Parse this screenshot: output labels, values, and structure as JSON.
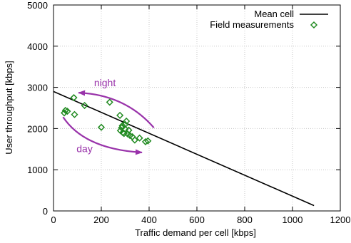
{
  "chart_data": {
    "type": "scatter",
    "title": "",
    "xlabel": "Traffic demand per cell [kbps]",
    "ylabel": "User throughput [kbps]",
    "xlim": [
      0,
      1200
    ],
    "ylim": [
      0,
      5000
    ],
    "xticks": [
      0,
      200,
      400,
      600,
      800,
      1000,
      1200
    ],
    "yticks": [
      0,
      1000,
      2000,
      3000,
      4000,
      5000
    ],
    "x_tick_labels": [
      "0",
      "200",
      "400",
      "600",
      "800",
      "1000",
      "1200"
    ],
    "y_tick_labels": [
      "0",
      "1000",
      "2000",
      "3000",
      "4000",
      "5000"
    ],
    "grid": true,
    "legend_position": "top-right",
    "series": [
      {
        "name": "Mean cell",
        "type": "line",
        "color": "#000000",
        "x": [
          0,
          1090
        ],
        "y": [
          2900,
          130
        ]
      },
      {
        "name": "Field measurements",
        "type": "scatter",
        "marker": "diamond",
        "color": "#228b22",
        "x": [
          45,
          50,
          58,
          85,
          88,
          130,
          200,
          235,
          278,
          280,
          285,
          288,
          290,
          295,
          300,
          300,
          305,
          310,
          315,
          320,
          330,
          340,
          360,
          385,
          395
        ],
        "y": [
          2380,
          2440,
          2420,
          2750,
          2340,
          2560,
          2030,
          2640,
          2320,
          1950,
          2020,
          2070,
          1900,
          1880,
          1990,
          2100,
          2180,
          1870,
          1960,
          1830,
          1800,
          1720,
          1770,
          1680,
          1700
        ]
      }
    ],
    "annotations": [
      {
        "text": "night",
        "color": "#9933aa",
        "text_at": [
          215,
          3030
        ],
        "arrow_from": [
          420,
          2020
        ],
        "arrow_via": [
          300,
          2820
        ],
        "arrow_to": [
          105,
          2870
        ]
      },
      {
        "text": "day",
        "color": "#9933aa",
        "text_at": [
          130,
          1430
        ],
        "arrow_from": [
          40,
          2280
        ],
        "arrow_via": [
          130,
          1500
        ],
        "arrow_to": [
          370,
          1420
        ]
      }
    ]
  }
}
